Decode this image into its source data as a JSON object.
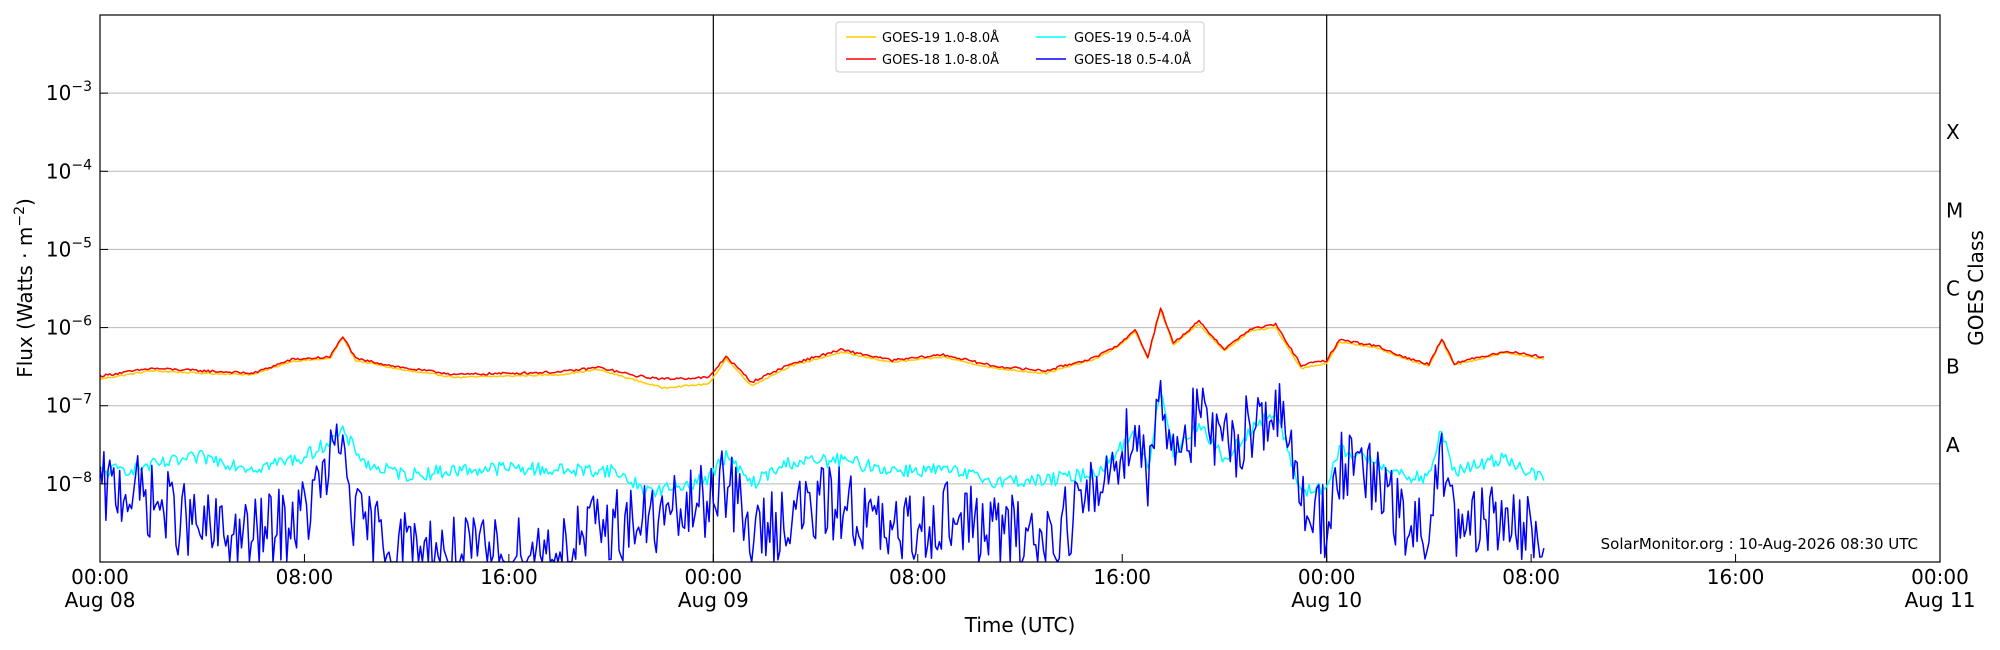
{
  "chart_data": {
    "type": "line",
    "title": "",
    "xlabel": "Time (UTC)",
    "ylabel": "Flux (Watts · m",
    "ylabel_exponent": "−2",
    "ylabel_close": ")",
    "right_ylabel": "GOES Class",
    "y_scale": "log",
    "ylim": [
      1e-09,
      0.01
    ],
    "xlim": [
      "2026-08-08T00:00",
      "2026-08-11T00:00"
    ],
    "grid": "horizontal",
    "legend_position": "top-center",
    "x_ticks": [
      {
        "t": "2026-08-08T00:00",
        "line1": "00:00",
        "line2": "Aug 08"
      },
      {
        "t": "2026-08-08T08:00",
        "line1": "08:00",
        "line2": ""
      },
      {
        "t": "2026-08-08T16:00",
        "line1": "16:00",
        "line2": ""
      },
      {
        "t": "2026-08-09T00:00",
        "line1": "00:00",
        "line2": "Aug 09"
      },
      {
        "t": "2026-08-09T08:00",
        "line1": "08:00",
        "line2": ""
      },
      {
        "t": "2026-08-09T16:00",
        "line1": "16:00",
        "line2": ""
      },
      {
        "t": "2026-08-10T00:00",
        "line1": "00:00",
        "line2": "Aug 10"
      },
      {
        "t": "2026-08-10T08:00",
        "line1": "08:00",
        "line2": ""
      },
      {
        "t": "2026-08-10T16:00",
        "line1": "16:00",
        "line2": ""
      },
      {
        "t": "2026-08-11T00:00",
        "line1": "00:00",
        "line2": "Aug 11"
      }
    ],
    "y_ticks": [
      {
        "value": 1e-08,
        "base": "10",
        "exp": "−8"
      },
      {
        "value": 1e-07,
        "base": "10",
        "exp": "−7"
      },
      {
        "value": 1e-06,
        "base": "10",
        "exp": "−6"
      },
      {
        "value": 1e-05,
        "base": "10",
        "exp": "−5"
      },
      {
        "value": 0.0001,
        "base": "10",
        "exp": "−4"
      },
      {
        "value": 0.001,
        "base": "10",
        "exp": "−3"
      }
    ],
    "goes_classes": [
      {
        "label": "A",
        "value": 3.16e-08
      },
      {
        "label": "B",
        "value": 3.16e-07
      },
      {
        "label": "C",
        "value": 3.16e-06
      },
      {
        "label": "M",
        "value": 3.16e-05
      },
      {
        "label": "X",
        "value": 0.000316
      }
    ],
    "day_boundaries": [
      "2026-08-09T00:00",
      "2026-08-10T00:00"
    ],
    "watermark": "SolarMonitor.org : 10-Aug-2026 08:30 UTC",
    "series": [
      {
        "name": "GOES-19 1.0-8.0Å",
        "color": "#ffcc00",
        "noise": 0.01,
        "points": [
          [
            "2026-08-08T00:00",
            2.2e-07
          ],
          [
            "2026-08-08T02:00",
            2.8e-07
          ],
          [
            "2026-08-08T04:00",
            2.6e-07
          ],
          [
            "2026-08-08T06:00",
            2.5e-07
          ],
          [
            "2026-08-08T07:30",
            3.7e-07
          ],
          [
            "2026-08-08T09:00",
            4e-07
          ],
          [
            "2026-08-08T09:30",
            7.5e-07
          ],
          [
            "2026-08-08T10:00",
            3.8e-07
          ],
          [
            "2026-08-08T12:00",
            2.8e-07
          ],
          [
            "2026-08-08T14:00",
            2.3e-07
          ],
          [
            "2026-08-08T16:00",
            2.4e-07
          ],
          [
            "2026-08-08T18:00",
            2.5e-07
          ],
          [
            "2026-08-08T19:30",
            2.9e-07
          ],
          [
            "2026-08-08T21:00",
            2.1e-07
          ],
          [
            "2026-08-08T22:00",
            1.7e-07
          ],
          [
            "2026-08-08T23:50",
            1.9e-07
          ],
          [
            "2026-08-09T00:30",
            4e-07
          ],
          [
            "2026-08-09T01:30",
            1.8e-07
          ],
          [
            "2026-08-09T03:00",
            3.2e-07
          ],
          [
            "2026-08-09T05:00",
            4.8e-07
          ],
          [
            "2026-08-09T07:00",
            3.6e-07
          ],
          [
            "2026-08-09T09:00",
            4.2e-07
          ],
          [
            "2026-08-09T11:00",
            3e-07
          ],
          [
            "2026-08-09T13:00",
            2.6e-07
          ],
          [
            "2026-08-09T15:00",
            4e-07
          ],
          [
            "2026-08-09T16:00",
            6.2e-07
          ],
          [
            "2026-08-09T16:30",
            9e-07
          ],
          [
            "2026-08-09T17:00",
            4e-07
          ],
          [
            "2026-08-09T17:30",
            1.7e-06
          ],
          [
            "2026-08-09T18:00",
            6e-07
          ],
          [
            "2026-08-09T19:00",
            1.1e-06
          ],
          [
            "2026-08-09T20:00",
            5e-07
          ],
          [
            "2026-08-09T21:00",
            9e-07
          ],
          [
            "2026-08-09T22:00",
            1e-06
          ],
          [
            "2026-08-09T23:00",
            3e-07
          ],
          [
            "2026-08-10T00:00",
            3.5e-07
          ],
          [
            "2026-08-10T00:30",
            6.5e-07
          ],
          [
            "2026-08-10T02:00",
            5.5e-07
          ],
          [
            "2026-08-10T03:00",
            4e-07
          ],
          [
            "2026-08-10T04:00",
            3.2e-07
          ],
          [
            "2026-08-10T04:30",
            6.8e-07
          ],
          [
            "2026-08-10T05:00",
            3.3e-07
          ],
          [
            "2026-08-10T07:00",
            4.8e-07
          ],
          [
            "2026-08-10T08:30",
            3.9e-07
          ]
        ]
      },
      {
        "name": "GOES-18 1.0-8.0Å",
        "color": "#ff0000",
        "noise": 0.015,
        "points": [
          [
            "2026-08-08T00:00",
            2.4e-07
          ],
          [
            "2026-08-08T02:00",
            3e-07
          ],
          [
            "2026-08-08T04:00",
            2.8e-07
          ],
          [
            "2026-08-08T06:00",
            2.6e-07
          ],
          [
            "2026-08-08T07:30",
            3.9e-07
          ],
          [
            "2026-08-08T09:00",
            4.2e-07
          ],
          [
            "2026-08-08T09:30",
            7.8e-07
          ],
          [
            "2026-08-08T10:00",
            4e-07
          ],
          [
            "2026-08-08T12:00",
            3e-07
          ],
          [
            "2026-08-08T14:00",
            2.5e-07
          ],
          [
            "2026-08-08T16:00",
            2.6e-07
          ],
          [
            "2026-08-08T18:00",
            2.7e-07
          ],
          [
            "2026-08-08T19:30",
            3.1e-07
          ],
          [
            "2026-08-08T21:00",
            2.4e-07
          ],
          [
            "2026-08-08T22:00",
            2.2e-07
          ],
          [
            "2026-08-08T23:50",
            2.3e-07
          ],
          [
            "2026-08-09T00:30",
            4.3e-07
          ],
          [
            "2026-08-09T01:30",
            2e-07
          ],
          [
            "2026-08-09T03:00",
            3.4e-07
          ],
          [
            "2026-08-09T05:00",
            5.2e-07
          ],
          [
            "2026-08-09T07:00",
            3.8e-07
          ],
          [
            "2026-08-09T09:00",
            4.5e-07
          ],
          [
            "2026-08-09T11:00",
            3.2e-07
          ],
          [
            "2026-08-09T13:00",
            2.8e-07
          ],
          [
            "2026-08-09T15:00",
            4.2e-07
          ],
          [
            "2026-08-09T16:00",
            6.5e-07
          ],
          [
            "2026-08-09T16:30",
            9.5e-07
          ],
          [
            "2026-08-09T17:00",
            4.2e-07
          ],
          [
            "2026-08-09T17:30",
            1.8e-06
          ],
          [
            "2026-08-09T18:00",
            6.3e-07
          ],
          [
            "2026-08-09T19:00",
            1.2e-06
          ],
          [
            "2026-08-09T20:00",
            5.3e-07
          ],
          [
            "2026-08-09T21:00",
            9.5e-07
          ],
          [
            "2026-08-09T22:00",
            1.1e-06
          ],
          [
            "2026-08-09T23:00",
            3.3e-07
          ],
          [
            "2026-08-10T00:00",
            3.8e-07
          ],
          [
            "2026-08-10T00:30",
            7e-07
          ],
          [
            "2026-08-10T02:00",
            5.8e-07
          ],
          [
            "2026-08-10T03:00",
            4.2e-07
          ],
          [
            "2026-08-10T04:00",
            3.4e-07
          ],
          [
            "2026-08-10T04:30",
            7.2e-07
          ],
          [
            "2026-08-10T05:00",
            3.5e-07
          ],
          [
            "2026-08-10T07:00",
            5e-07
          ],
          [
            "2026-08-10T08:30",
            4.2e-07
          ]
        ]
      },
      {
        "name": "GOES-19 0.5-4.0Å",
        "color": "#00ffff",
        "noise": 0.09,
        "points": [
          [
            "2026-08-08T00:00",
            1.4e-08
          ],
          [
            "2026-08-08T02:00",
            1.7e-08
          ],
          [
            "2026-08-08T04:00",
            2.2e-08
          ],
          [
            "2026-08-08T06:00",
            1.6e-08
          ],
          [
            "2026-08-08T08:00",
            2.2e-08
          ],
          [
            "2026-08-08T09:30",
            4.5e-08
          ],
          [
            "2026-08-08T10:30",
            1.7e-08
          ],
          [
            "2026-08-08T12:00",
            1.3e-08
          ],
          [
            "2026-08-08T14:00",
            1.5e-08
          ],
          [
            "2026-08-08T16:00",
            1.6e-08
          ],
          [
            "2026-08-08T18:00",
            1.5e-08
          ],
          [
            "2026-08-08T20:00",
            1.5e-08
          ],
          [
            "2026-08-08T21:30",
            8e-09
          ],
          [
            "2026-08-08T22:30",
            9e-09
          ],
          [
            "2026-08-08T23:50",
            1.2e-08
          ],
          [
            "2026-08-09T00:30",
            2.3e-08
          ],
          [
            "2026-08-09T01:30",
            1e-08
          ],
          [
            "2026-08-09T03:00",
            1.9e-08
          ],
          [
            "2026-08-09T05:00",
            2e-08
          ],
          [
            "2026-08-09T07:00",
            1.5e-08
          ],
          [
            "2026-08-09T09:00",
            1.5e-08
          ],
          [
            "2026-08-09T11:00",
            1.1e-08
          ],
          [
            "2026-08-09T13:00",
            1.1e-08
          ],
          [
            "2026-08-09T15:00",
            1.4e-08
          ],
          [
            "2026-08-09T16:00",
            3e-08
          ],
          [
            "2026-08-09T16:30",
            5e-08
          ],
          [
            "2026-08-09T17:00",
            1.5e-08
          ],
          [
            "2026-08-09T17:30",
            1.6e-07
          ],
          [
            "2026-08-09T18:00",
            2.5e-08
          ],
          [
            "2026-08-09T19:00",
            6e-08
          ],
          [
            "2026-08-09T20:00",
            2e-08
          ],
          [
            "2026-08-09T21:00",
            5e-08
          ],
          [
            "2026-08-09T22:00",
            8e-08
          ],
          [
            "2026-08-09T23:00",
            8e-09
          ],
          [
            "2026-08-10T00:00",
            9e-09
          ],
          [
            "2026-08-10T00:30",
            2.6e-08
          ],
          [
            "2026-08-10T02:00",
            2e-08
          ],
          [
            "2026-08-10T03:00",
            1.2e-08
          ],
          [
            "2026-08-10T04:00",
            1.2e-08
          ],
          [
            "2026-08-10T04:30",
            5e-08
          ],
          [
            "2026-08-10T05:00",
            1.4e-08
          ],
          [
            "2026-08-10T07:00",
            2.2e-08
          ],
          [
            "2026-08-10T08:30",
            1.1e-08
          ]
        ]
      },
      {
        "name": "GOES-18 0.5-4.0Å",
        "color": "#0000ff",
        "noise": 0.5,
        "points": [
          [
            "2026-08-08T00:00",
            8e-09
          ],
          [
            "2026-08-08T01:00",
            9e-09
          ],
          [
            "2026-08-08T02:30",
            5e-09
          ],
          [
            "2026-08-08T04:00",
            2.5e-09
          ],
          [
            "2026-08-08T06:00",
            2e-09
          ],
          [
            "2026-08-08T08:00",
            4e-09
          ],
          [
            "2026-08-08T09:30",
            3.5e-08
          ],
          [
            "2026-08-08T10:00",
            3e-09
          ],
          [
            "2026-08-08T12:00",
            1.5e-09
          ],
          [
            "2026-08-08T14:00",
            1.2e-09
          ],
          [
            "2026-08-08T16:00",
            1.2e-09
          ],
          [
            "2026-08-08T18:00",
            1.5e-09
          ],
          [
            "2026-08-08T20:00",
            3e-09
          ],
          [
            "2026-08-08T22:00",
            3.5e-09
          ],
          [
            "2026-08-08T23:50",
            6e-09
          ],
          [
            "2026-08-09T00:20",
            1.5e-08
          ],
          [
            "2026-08-09T01:30",
            2e-09
          ],
          [
            "2026-08-09T03:00",
            4e-09
          ],
          [
            "2026-08-09T05:00",
            6e-09
          ],
          [
            "2026-08-09T07:00",
            2e-09
          ],
          [
            "2026-08-09T09:00",
            4e-09
          ],
          [
            "2026-08-09T11:00",
            2.5e-09
          ],
          [
            "2026-08-09T13:00",
            2e-09
          ],
          [
            "2026-08-09T15:00",
            8e-09
          ],
          [
            "2026-08-09T16:00",
            3e-08
          ],
          [
            "2026-08-09T16:30",
            6e-08
          ],
          [
            "2026-08-09T17:00",
            1.2e-08
          ],
          [
            "2026-08-09T17:30",
            1.7e-07
          ],
          [
            "2026-08-09T18:00",
            3e-08
          ],
          [
            "2026-08-09T19:00",
            7e-08
          ],
          [
            "2026-08-09T20:00",
            2.5e-08
          ],
          [
            "2026-08-09T21:00",
            6e-08
          ],
          [
            "2026-08-09T22:00",
            9.5e-08
          ],
          [
            "2026-08-09T23:00",
            8e-09
          ],
          [
            "2026-08-10T00:00",
            3e-09
          ],
          [
            "2026-08-10T00:30",
            1.8e-08
          ],
          [
            "2026-08-10T02:00",
            1e-08
          ],
          [
            "2026-08-10T03:00",
            3e-09
          ],
          [
            "2026-08-10T04:00",
            2e-09
          ],
          [
            "2026-08-10T04:30",
            3.5e-08
          ],
          [
            "2026-08-10T05:00",
            2e-09
          ],
          [
            "2026-08-10T07:00",
            4e-09
          ],
          [
            "2026-08-10T08:30",
            1.5e-09
          ]
        ]
      }
    ]
  }
}
